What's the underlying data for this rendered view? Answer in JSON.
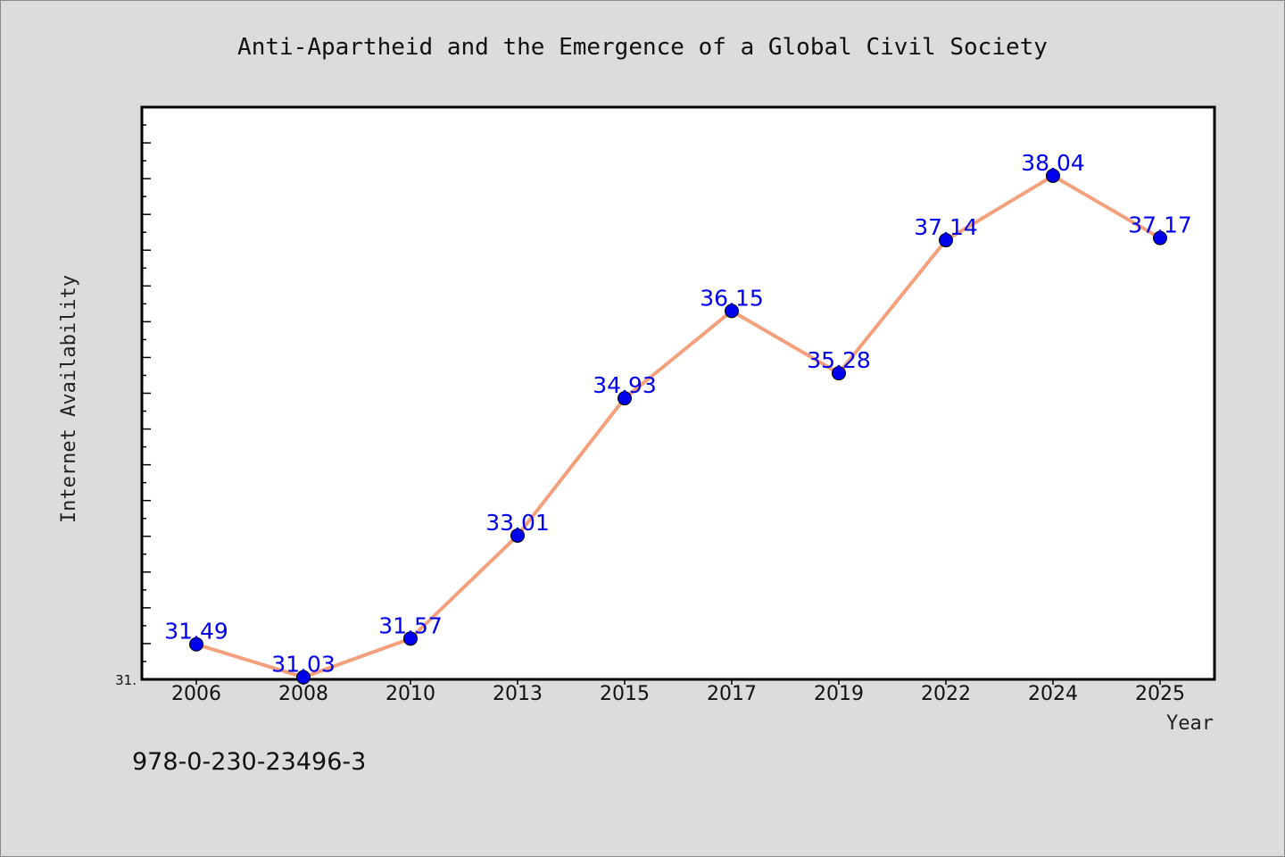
{
  "chart_data": {
    "type": "line",
    "title": "Anti-Apartheid and the Emergence of a Global Civil Society",
    "xlabel": "Year",
    "ylabel": "Internet Availability",
    "categories": [
      "2006",
      "2008",
      "2010",
      "2013",
      "2015",
      "2017",
      "2019",
      "2022",
      "2024",
      "2025"
    ],
    "values": [
      31.49,
      31.03,
      31.57,
      33.01,
      34.93,
      36.15,
      35.28,
      37.14,
      38.04,
      37.17
    ],
    "data_labels": [
      "31.49",
      "31.03",
      "31.57",
      "33.01",
      "34.93",
      "36.15",
      "35.28",
      "37.14",
      "38.04",
      "37.17"
    ],
    "y_tick_label": "31.",
    "ylim": [
      31.0,
      39.0
    ],
    "grid": false,
    "line_color": "#f4a07c",
    "marker_color": "#0000ee"
  },
  "footer": {
    "isbn": "978-0-230-23496-3"
  }
}
